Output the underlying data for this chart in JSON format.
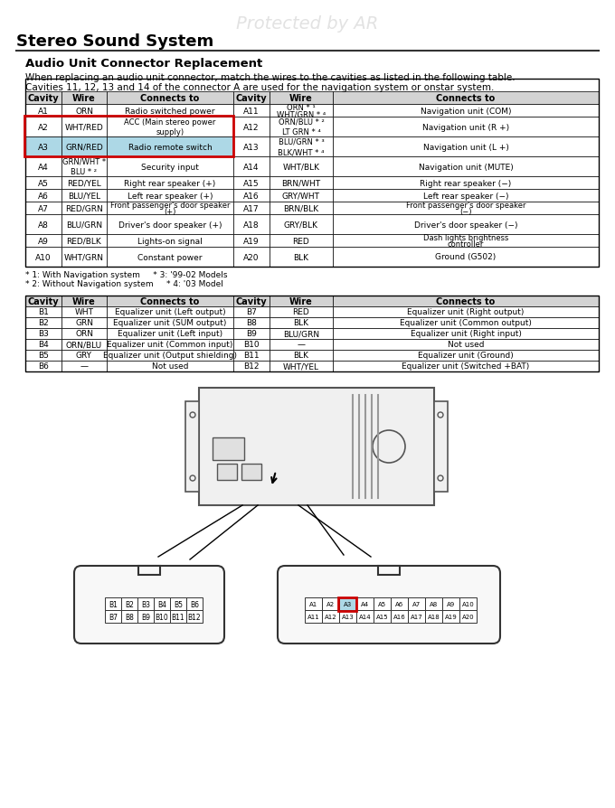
{
  "title": "Stereo Sound System",
  "subtitle": "Audio Unit Connector Replacement",
  "watermark": "Protected by AR",
  "description_line1": "When replacing an audio unit connector, match the wires to the cavities as listed in the following table.",
  "description_line2": "Cavities 11, 12, 13 and 14 of the connector A are used for the navigation system or onstar system.",
  "table_a_headers": [
    "Cavity",
    "Wire",
    "Connects to",
    "Cavity",
    "Wire",
    "Connects to"
  ],
  "table_a_rows": [
    [
      "A1",
      "ORN",
      "Radio switched power",
      "A11",
      "ORN * ¹\nWHT/GRN * ⁴",
      "Navigation unit (COM)"
    ],
    [
      "A2",
      "WHT/RED",
      "ACC (Main stereo power\nsupply)",
      "A12",
      "ORN/BLU * ²\nLT GRN * ⁴",
      "Navigation unit (R +)"
    ],
    [
      "A3",
      "GRN/RED",
      "Radio remote switch",
      "A13",
      "BLU/GRN * ³\nBLK/WHT * ⁴",
      "Navigation unit (L +)"
    ],
    [
      "A4",
      "GRN/WHT *\nBLU * ²",
      "Security input",
      "A14",
      "WHT/BLK",
      "Navigation unit (MUTE)"
    ],
    [
      "A5",
      "RED/YEL",
      "Right rear speaker (+)",
      "A15",
      "BRN/WHT",
      "Right rear speaker (−)"
    ],
    [
      "A6",
      "BLU/YEL",
      "Left rear speaker (+)",
      "A16",
      "GRY/WHT",
      "Left rear speaker (−)"
    ],
    [
      "A7",
      "RED/GRN",
      "Front passenger's door speaker\n(+)",
      "A17",
      "BRN/BLK",
      "Front passenger's door speaker\n(−)"
    ],
    [
      "A8",
      "BLU/GRN",
      "Driver's door speaker (+)",
      "A18",
      "GRY/BLK",
      "Driver's door speaker (−)"
    ],
    [
      "A9",
      "RED/BLK",
      "Lights-on signal",
      "A19",
      "RED",
      "Dash lights brightness\ncontroller"
    ],
    [
      "A10",
      "WHT/GRN",
      "Constant power",
      "A20",
      "BLK",
      "Ground (G502)"
    ]
  ],
  "table_a_footnotes": [
    "* 1: With Navigation system     * 3: '99-02 Models",
    "* 2: Without Navigation system     * 4: '03 Model"
  ],
  "table_b_headers": [
    "Cavity",
    "Wire",
    "Connects to",
    "Cavity",
    "Wire",
    "Connects to"
  ],
  "table_b_rows": [
    [
      "B1",
      "WHT",
      "Equalizer unit (Left output)",
      "B7",
      "RED",
      "Equalizer unit (Right output)"
    ],
    [
      "B2",
      "GRN",
      "Equalizer unit (SUM output)",
      "B8",
      "BLK",
      "Equalizer unit (Common output)"
    ],
    [
      "B3",
      "ORN",
      "Equalizer unit (Left input)",
      "B9",
      "BLU/GRN",
      "Equalizer unit (Right input)"
    ],
    [
      "B4",
      "ORN/BLU",
      "Equalizer unit (Common input)",
      "B10",
      "—",
      "Not used"
    ],
    [
      "B5",
      "GRY",
      "Equalizer unit (Output shielding)",
      "B11",
      "BLK",
      "Equalizer unit (Ground)"
    ],
    [
      "B6",
      "—",
      "Not used",
      "B12",
      "WHT/YEL",
      "Equalizer unit (Switched +BAT)"
    ]
  ],
  "highlight_row_a3": true,
  "bg_color": "#ffffff",
  "header_bg": "#d3d3d3",
  "highlight_bg": "#add8e6",
  "highlight_border": "#cc0000",
  "table_border": "#000000",
  "text_color": "#000000",
  "watermark_color": "#d0d0d0"
}
